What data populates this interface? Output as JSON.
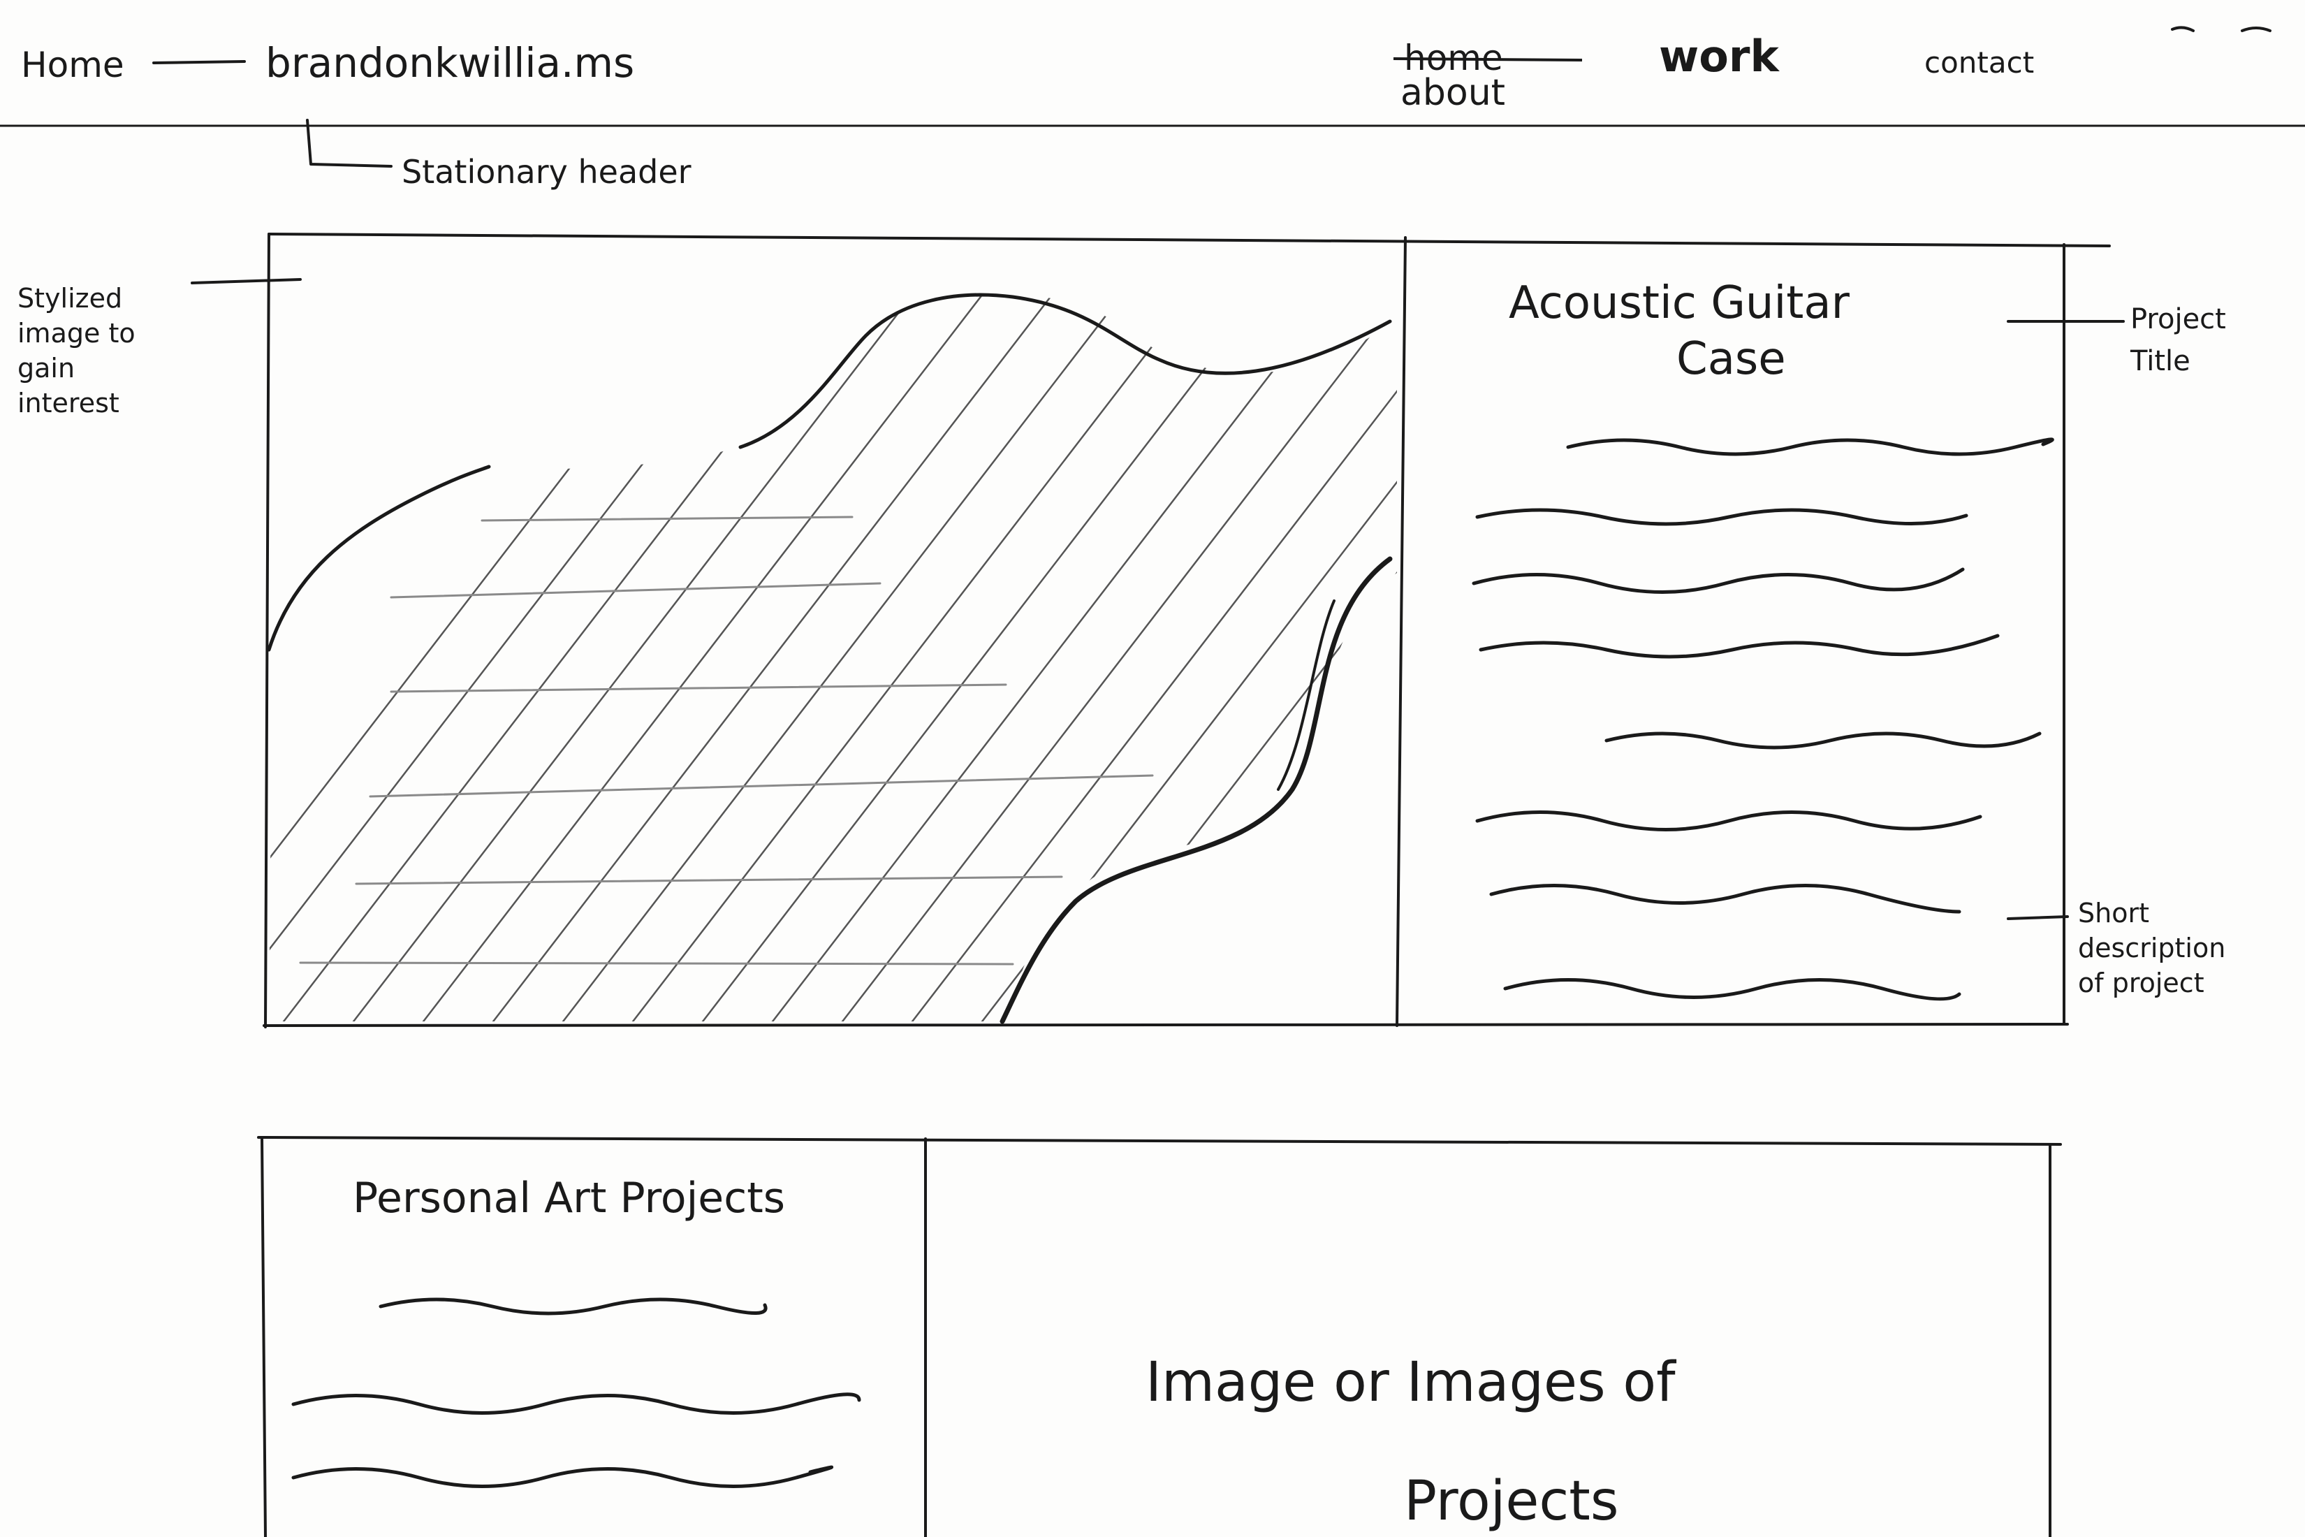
{
  "header": {
    "home_label": "Home",
    "site_url": "brandonkwillia.ms",
    "nav": {
      "home_struck": "home",
      "about": "about",
      "work": "work",
      "contact": "contact"
    },
    "header_annotation": "Stationary header"
  },
  "hero": {
    "image_annotation": "Stylized image to gain interest",
    "project_title": "Acoustic Guitar Case",
    "title_annotation": "Project Title",
    "description_annotation": "Short description of project"
  },
  "secondary": {
    "project_title": "Personal Art Projects",
    "image_placeholder_line1": "Image or Images of",
    "image_placeholder_line2": "Projects"
  }
}
